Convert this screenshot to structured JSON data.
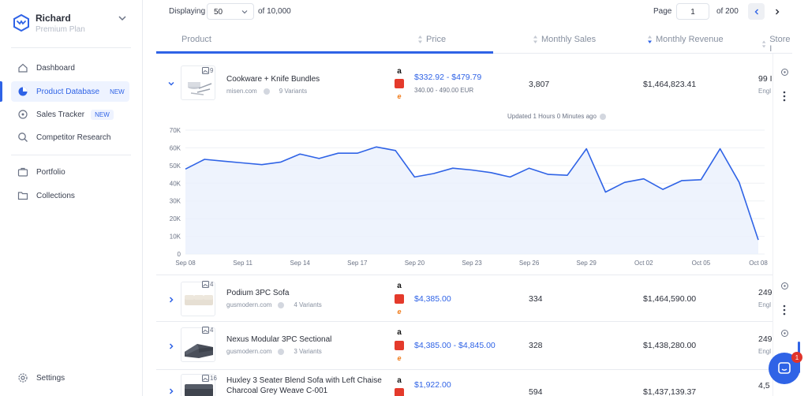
{
  "user": {
    "name": "Richard",
    "plan": "Premium Plan"
  },
  "nav": {
    "dashboard": "Dashboard",
    "product_database": "Product Database",
    "product_database_tag": "NEW",
    "sales_tracker": "Sales Tracker",
    "sales_tracker_tag": "NEW",
    "competitor_research": "Competitor Research",
    "portfolio": "Portfolio",
    "collections": "Collections",
    "settings": "Settings"
  },
  "toolbar": {
    "displaying_label": "Displaying",
    "per_page": "50",
    "of_total": "of 10,000",
    "page_label": "Page",
    "page_value": "1",
    "of_pages": "of 200"
  },
  "columns": {
    "product": "Product",
    "price": "Price",
    "monthly_sales": "Monthly Sales",
    "monthly_revenue": "Monthly Revenue",
    "store": "Store I"
  },
  "rows": [
    {
      "image_count": "9",
      "title": "Cookware + Knife Bundles",
      "store": "misen.com",
      "variants": "9 Variants",
      "price": "$332.92 - $479.79",
      "price_sub": "340.00 - 490.00 EUR",
      "sales": "3,807",
      "revenue": "$1,464,823.41",
      "cut": "99 I",
      "cut_sub": "Engl"
    },
    {
      "image_count": "4",
      "title": "Podium 3PC Sofa",
      "store": "gusmodern.com",
      "variants": "4 Variants",
      "price": "$4,385.00",
      "sales": "334",
      "revenue": "$1,464,590.00",
      "cut": "249",
      "cut_sub": "Engl"
    },
    {
      "image_count": "4",
      "title": "Nexus Modular 3PC Sectional",
      "store": "gusmodern.com",
      "variants": "3 Variants",
      "price": "$4,385.00 - $4,845.00",
      "sales": "328",
      "revenue": "$1,438,280.00",
      "cut": "249",
      "cut_sub": "Engl"
    },
    {
      "image_count": "16",
      "title": "Huxley 3 Seater Blend Sofa with Left Chaise",
      "title2": "Charcoal Grey Weave C-001",
      "price": "$1,922.00",
      "sales": "594",
      "revenue": "$1,437,139.37",
      "cut": "4,5"
    }
  ],
  "chart": {
    "updated": "Updated 1 Hours 0 Minutes ago"
  },
  "chart_data": {
    "type": "area",
    "yticks": [
      "0",
      "10K",
      "20K",
      "30K",
      "40K",
      "50K",
      "60K",
      "70K"
    ],
    "ylim": [
      0,
      70000
    ],
    "xticks": [
      "Sep 08",
      "Sep 11",
      "Sep 14",
      "Sep 17",
      "Sep 20",
      "Sep 23",
      "Sep 26",
      "Sep 29",
      "Oct 02",
      "Oct 05",
      "Oct 08"
    ],
    "x": [
      "Sep 08",
      "Sep 09",
      "Sep 10",
      "Sep 11",
      "Sep 12",
      "Sep 13",
      "Sep 14",
      "Sep 15",
      "Sep 16",
      "Sep 17",
      "Sep 18",
      "Sep 19",
      "Sep 20",
      "Sep 21",
      "Sep 22",
      "Sep 23",
      "Sep 24",
      "Sep 25",
      "Sep 26",
      "Sep 27",
      "Sep 28",
      "Sep 29",
      "Sep 30",
      "Oct 01",
      "Oct 02",
      "Oct 03",
      "Oct 04",
      "Oct 05",
      "Oct 06",
      "Oct 07",
      "Oct 08"
    ],
    "values": [
      48000,
      53500,
      52500,
      51500,
      50500,
      52000,
      56500,
      54000,
      57000,
      57000,
      60500,
      58500,
      43500,
      45500,
      48500,
      47500,
      46000,
      43500,
      48500,
      45000,
      44500,
      59500,
      35000,
      40500,
      42500,
      36500,
      41500,
      42000,
      59500,
      40500,
      8000
    ],
    "series_color": "#2f63e6"
  },
  "chat": {
    "badge": "1"
  }
}
